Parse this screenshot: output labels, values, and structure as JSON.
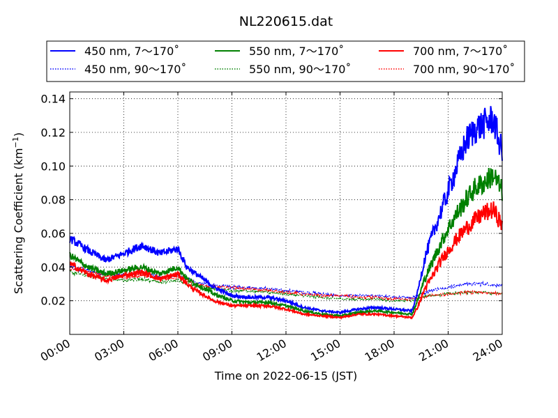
{
  "chart_data": {
    "type": "line",
    "title": "NL220615.dat",
    "xlabel": "Time on 2022-06-15 (JST)",
    "ylabel": "Scattering Coefficient (km",
    "ylabel_sup": "−1",
    "ylabel_tail": ")",
    "xlim": [
      0,
      24
    ],
    "ylim": [
      0.0,
      0.144
    ],
    "x_ticks": [
      0,
      3,
      6,
      9,
      12,
      15,
      18,
      21,
      24
    ],
    "x_tick_labels": [
      "00:00",
      "03:00",
      "06:00",
      "09:00",
      "12:00",
      "15:00",
      "18:00",
      "21:00",
      "24:00"
    ],
    "y_ticks": [
      0.02,
      0.04,
      0.06,
      0.08,
      0.1,
      0.12,
      0.14
    ],
    "y_tick_labels": [
      "0.02",
      "0.04",
      "0.06",
      "0.08",
      "0.10",
      "0.12",
      "0.14"
    ],
    "grid": true,
    "legend_position": "top",
    "series": [
      {
        "name": "450 nm, 7～170˚",
        "color": "#0000ff",
        "style": "solid",
        "x": [
          0,
          1,
          2,
          3,
          4,
          5,
          6,
          6.5,
          7,
          8,
          9,
          10,
          11,
          12,
          13,
          14,
          15,
          16,
          17,
          18,
          19,
          19.3,
          19.7,
          20,
          20.5,
          21,
          21.5,
          22,
          22.5,
          23,
          23.5,
          24
        ],
        "y": [
          0.057,
          0.05,
          0.044,
          0.048,
          0.053,
          0.048,
          0.051,
          0.04,
          0.036,
          0.028,
          0.023,
          0.022,
          0.022,
          0.02,
          0.016,
          0.014,
          0.013,
          0.015,
          0.016,
          0.015,
          0.014,
          0.025,
          0.045,
          0.055,
          0.07,
          0.085,
          0.1,
          0.115,
          0.122,
          0.125,
          0.128,
          0.108
        ]
      },
      {
        "name": "550 nm, 7～170˚",
        "color": "#008000",
        "style": "solid",
        "x": [
          0,
          1,
          2,
          3,
          4,
          5,
          6,
          6.5,
          7,
          8,
          9,
          10,
          11,
          12,
          13,
          14,
          15,
          16,
          17,
          18,
          19,
          19.3,
          19.7,
          20,
          20.5,
          21,
          21.5,
          22,
          22.5,
          23,
          23.5,
          24
        ],
        "y": [
          0.047,
          0.04,
          0.036,
          0.038,
          0.04,
          0.036,
          0.04,
          0.033,
          0.03,
          0.024,
          0.02,
          0.019,
          0.019,
          0.017,
          0.014,
          0.012,
          0.011,
          0.013,
          0.014,
          0.013,
          0.012,
          0.02,
          0.033,
          0.04,
          0.052,
          0.063,
          0.072,
          0.08,
          0.087,
          0.09,
          0.095,
          0.085
        ]
      },
      {
        "name": "700 nm, 7～170˚",
        "color": "#ff0000",
        "style": "solid",
        "x": [
          0,
          1,
          2,
          3,
          4,
          5,
          6,
          6.5,
          7,
          8,
          9,
          10,
          11,
          12,
          13,
          14,
          15,
          16,
          17,
          18,
          19,
          19.3,
          19.7,
          20,
          20.5,
          21,
          21.5,
          22,
          22.5,
          23,
          23.5,
          24
        ],
        "y": [
          0.042,
          0.036,
          0.032,
          0.035,
          0.037,
          0.033,
          0.036,
          0.03,
          0.026,
          0.02,
          0.017,
          0.017,
          0.017,
          0.015,
          0.012,
          0.011,
          0.01,
          0.012,
          0.012,
          0.011,
          0.01,
          0.016,
          0.027,
          0.032,
          0.042,
          0.05,
          0.057,
          0.063,
          0.068,
          0.072,
          0.074,
          0.065
        ]
      },
      {
        "name": "450 nm, 90～170˚",
        "color": "#0000ff",
        "style": "dotted",
        "x": [
          0,
          1,
          2,
          3,
          4,
          5,
          6,
          7,
          8,
          9,
          10,
          11,
          12,
          13,
          14,
          15,
          16,
          17,
          18,
          19,
          19.5,
          20,
          21,
          22,
          23,
          24
        ],
        "y": [
          0.04,
          0.038,
          0.036,
          0.035,
          0.037,
          0.034,
          0.035,
          0.031,
          0.029,
          0.028,
          0.028,
          0.027,
          0.026,
          0.025,
          0.024,
          0.023,
          0.023,
          0.023,
          0.022,
          0.022,
          0.024,
          0.026,
          0.028,
          0.03,
          0.03,
          0.029
        ]
      },
      {
        "name": "550 nm, 90～170˚",
        "color": "#008000",
        "style": "dotted",
        "x": [
          0,
          1,
          2,
          3,
          4,
          5,
          6,
          7,
          8,
          9,
          10,
          11,
          12,
          13,
          14,
          15,
          16,
          17,
          18,
          19,
          19.5,
          20,
          21,
          22,
          23,
          24
        ],
        "y": [
          0.037,
          0.035,
          0.033,
          0.032,
          0.033,
          0.031,
          0.032,
          0.029,
          0.027,
          0.026,
          0.026,
          0.025,
          0.024,
          0.023,
          0.022,
          0.021,
          0.021,
          0.021,
          0.02,
          0.02,
          0.022,
          0.023,
          0.024,
          0.025,
          0.025,
          0.024
        ]
      },
      {
        "name": "700 nm, 90～170˚",
        "color": "#ff0000",
        "style": "dotted",
        "x": [
          0,
          1,
          2,
          3,
          4,
          5,
          6,
          7,
          8,
          9,
          10,
          11,
          12,
          13,
          14,
          15,
          16,
          17,
          18,
          19,
          19.5,
          20,
          21,
          22,
          23,
          24
        ],
        "y": [
          0.039,
          0.037,
          0.035,
          0.034,
          0.035,
          0.033,
          0.034,
          0.03,
          0.028,
          0.028,
          0.027,
          0.026,
          0.025,
          0.024,
          0.023,
          0.023,
          0.022,
          0.022,
          0.021,
          0.021,
          0.022,
          0.023,
          0.024,
          0.025,
          0.025,
          0.024
        ]
      }
    ],
    "legend_order": [
      0,
      1,
      2,
      3,
      4,
      5
    ]
  }
}
